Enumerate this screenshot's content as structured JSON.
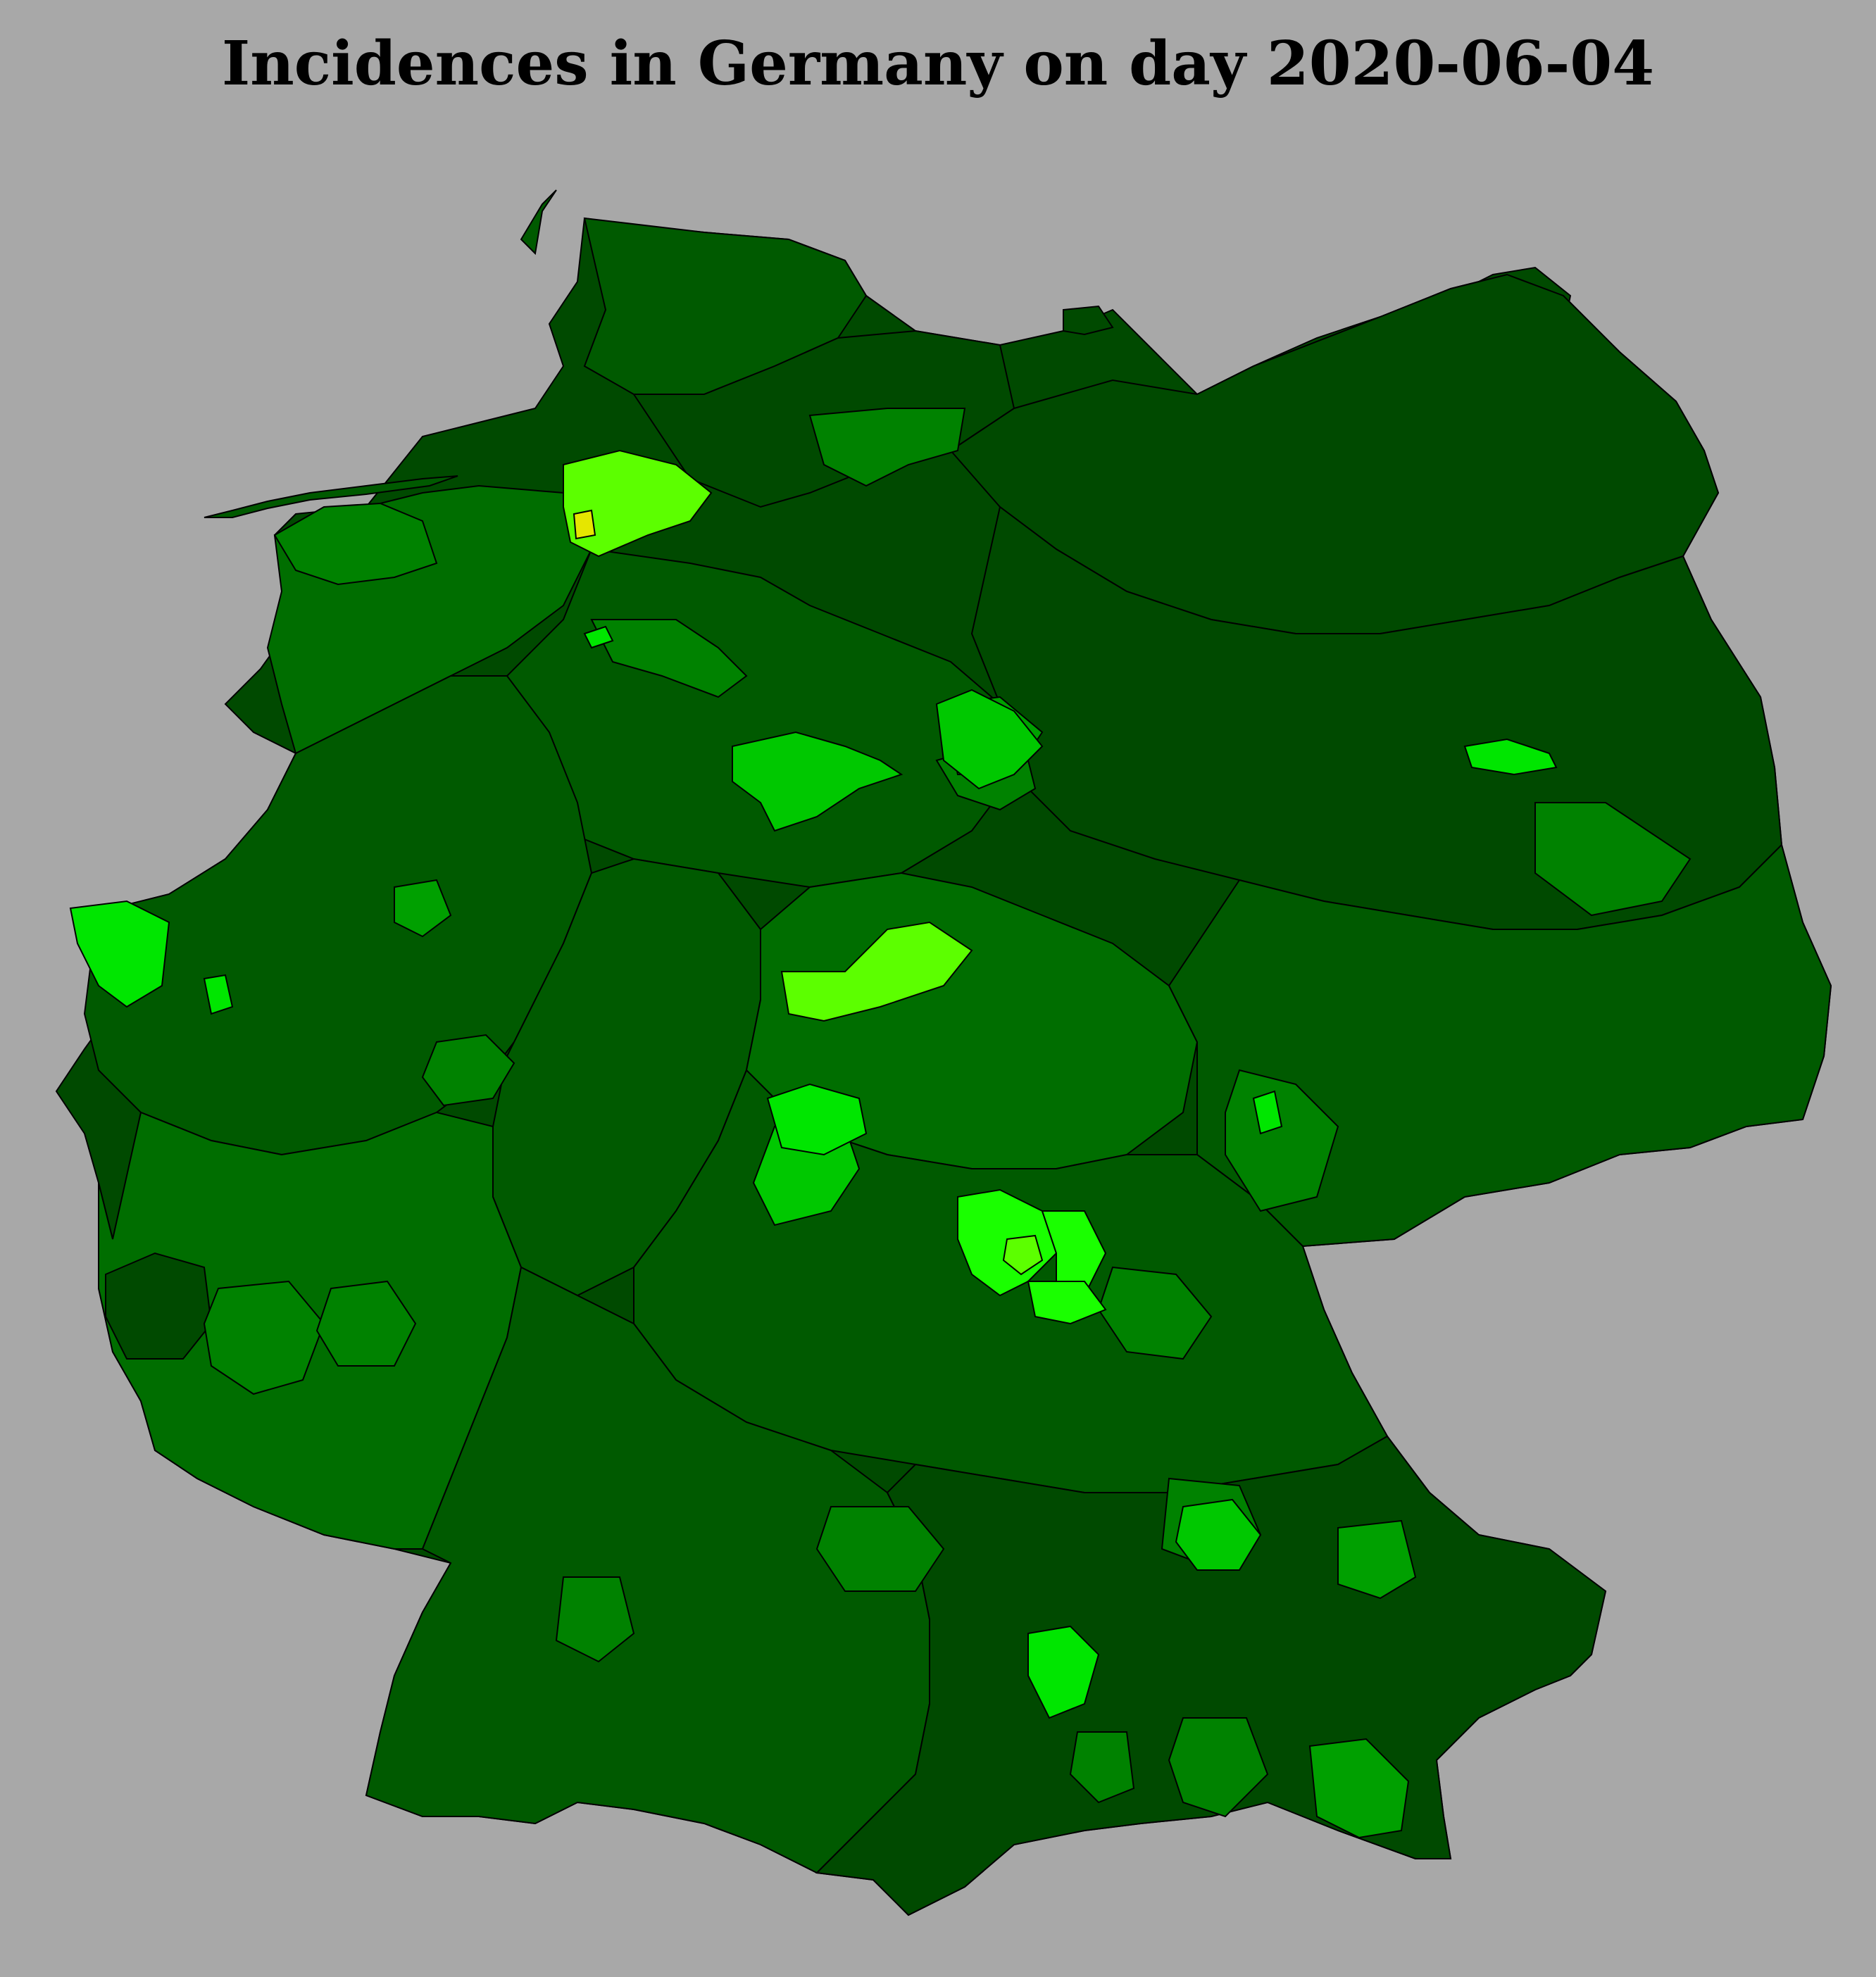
{
  "map": {
    "title": "Incidences in Germany on day 2020-06-04",
    "background_color": "#a8a8a8",
    "border_color": "#000000",
    "incidence_colors": {
      "lowest": "#004a00",
      "very_low": "#005a00",
      "low": "#006e00",
      "low_mid": "#008200",
      "mid": "#00a000",
      "elevated": "#00c800",
      "high": "#00e600",
      "higher": "#1aff00",
      "very_high": "#5cff00",
      "highest": "#e6e600"
    }
  }
}
